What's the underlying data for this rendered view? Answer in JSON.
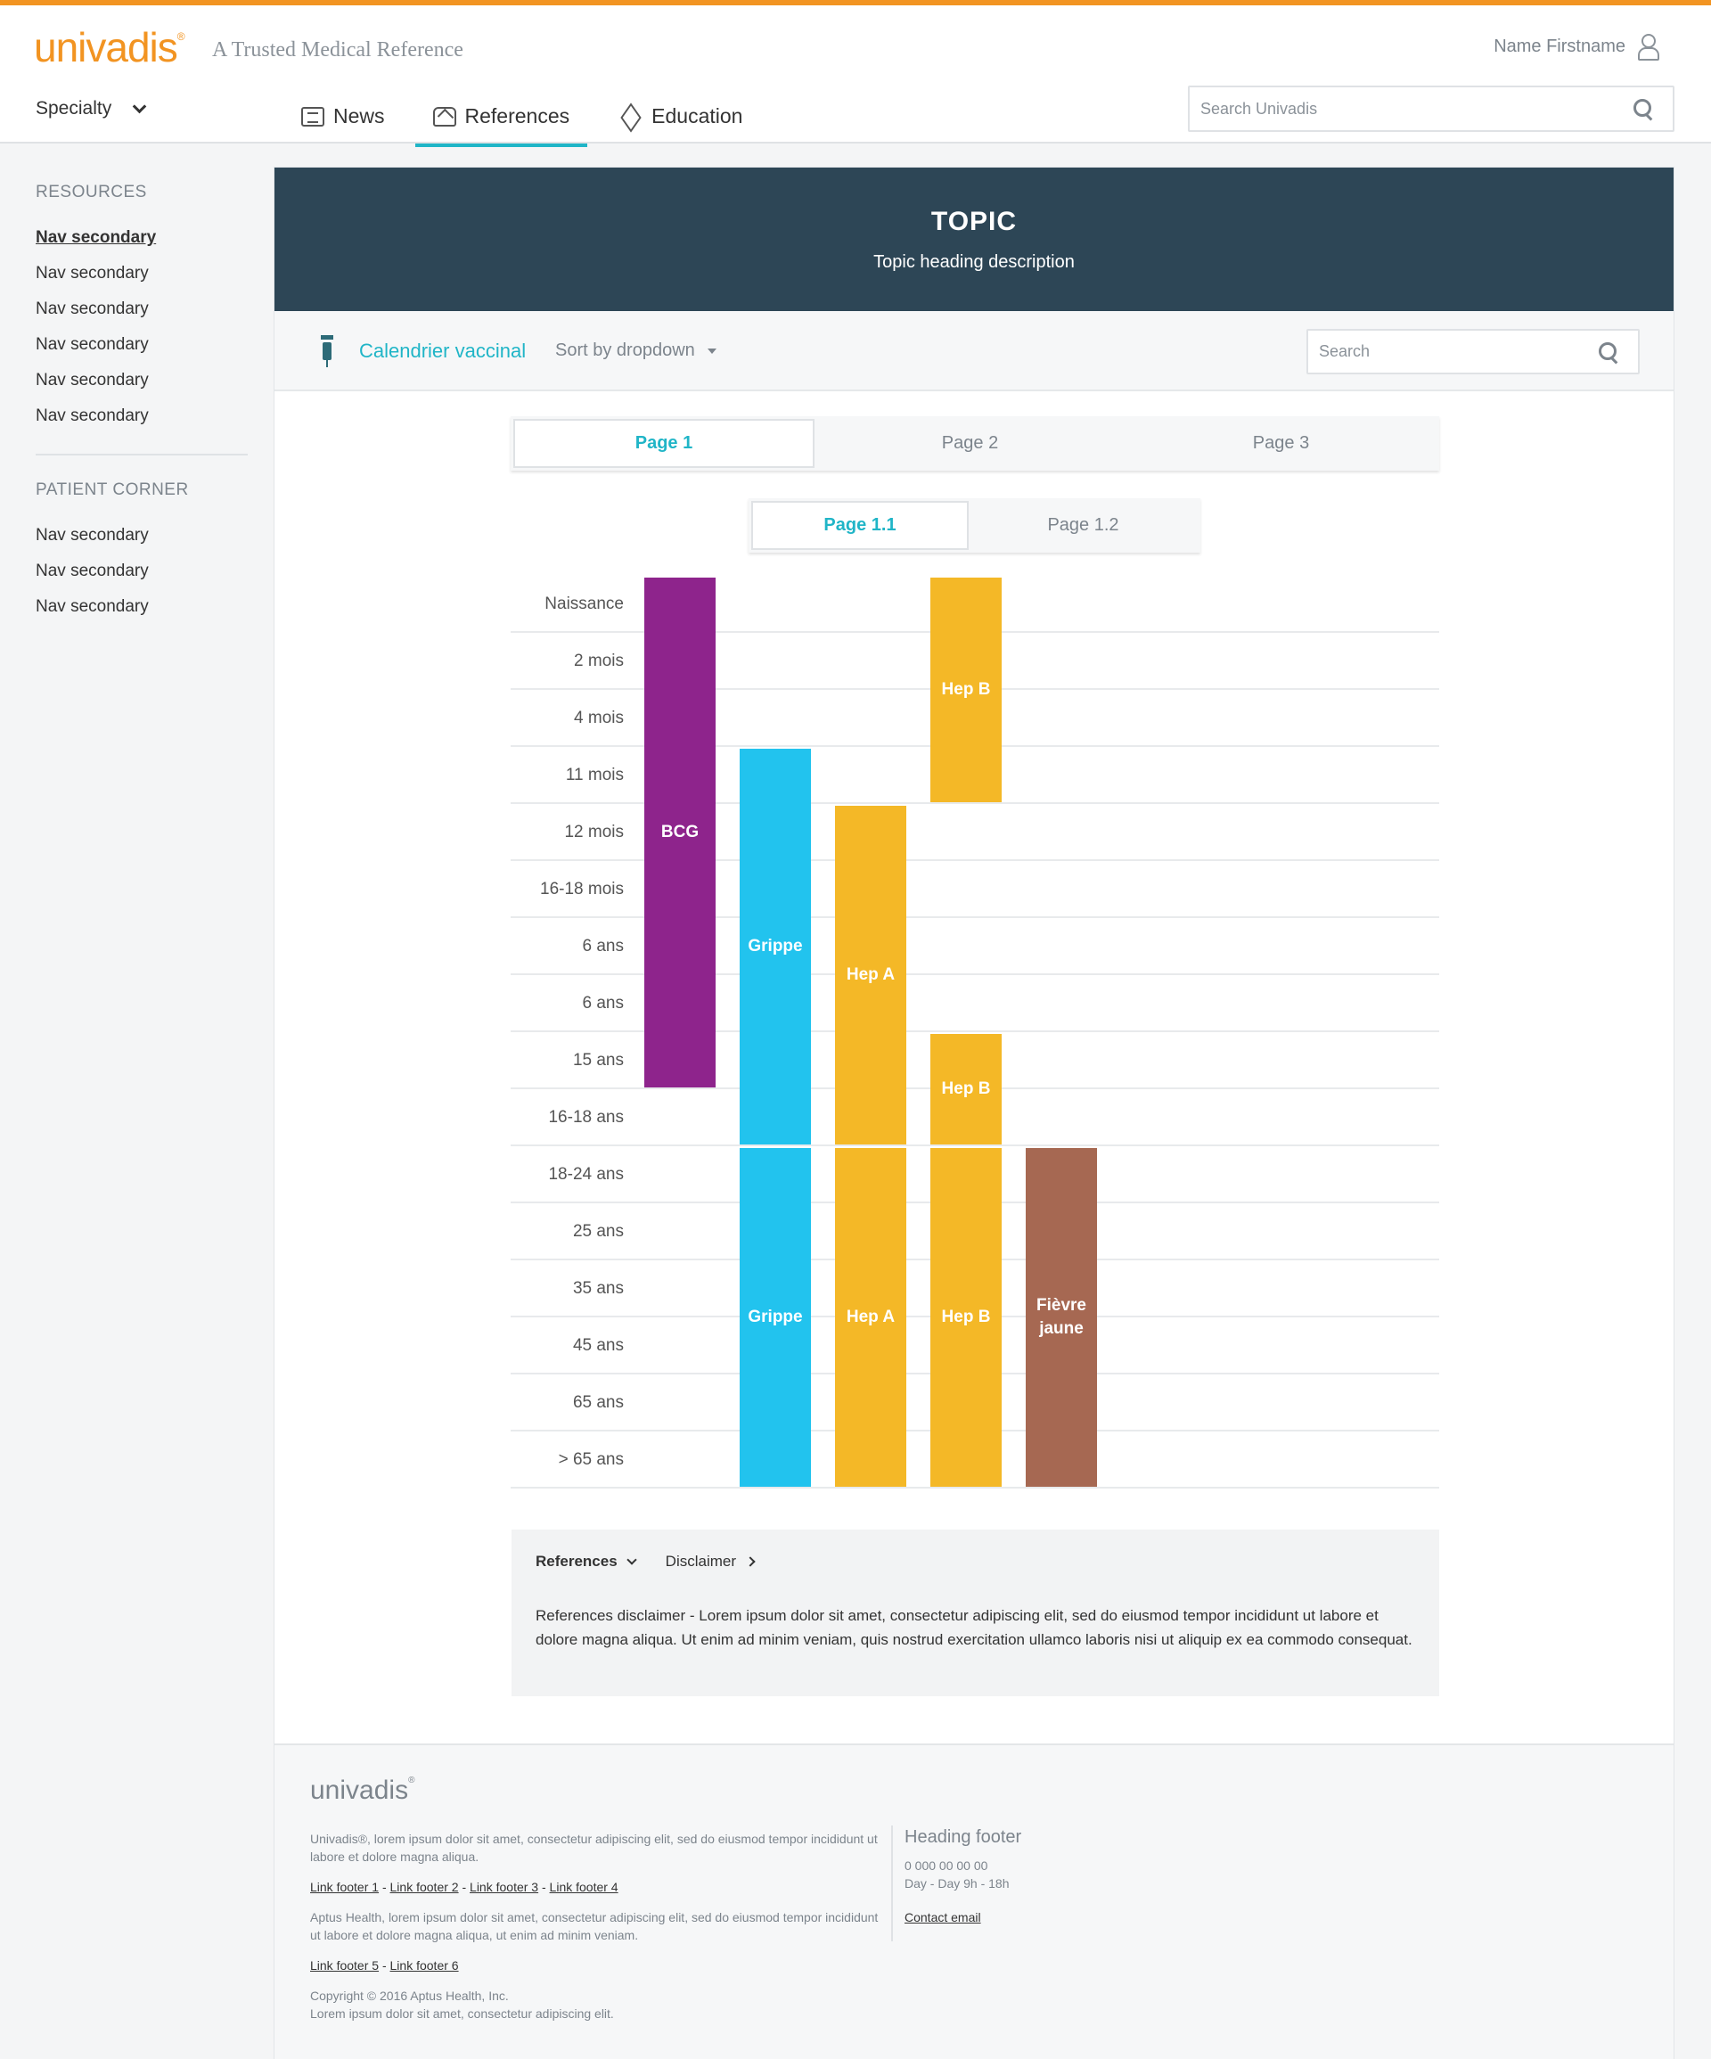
{
  "header": {
    "logo": "univadis",
    "logo_reg": "®",
    "tagline": "A Trusted Medical Reference",
    "user_name": "Name Firstname",
    "specialty_label": "Specialty",
    "nav": [
      {
        "label": "News",
        "icon": "news-icon"
      },
      {
        "label": "References",
        "icon": "references-icon",
        "active": true
      },
      {
        "label": "Education",
        "icon": "education-icon"
      }
    ],
    "search_placeholder": "Search Univadis",
    "accent_color": "#f29422",
    "active_color": "#20b5c7"
  },
  "sidebar": {
    "resources_heading": "RESOURCES",
    "resources": [
      "Nav secondary",
      "Nav secondary",
      "Nav secondary",
      "Nav secondary",
      "Nav secondary",
      "Nav secondary"
    ],
    "patient_heading": "PATIENT CORNER",
    "patient": [
      "Nav secondary",
      "Nav secondary",
      "Nav secondary"
    ]
  },
  "banner": {
    "title": "TOPIC",
    "description": "Topic heading description",
    "color": "#2d4656"
  },
  "toolbar": {
    "title": "Calendrier vaccinal",
    "sort_label": "Sort by dropdown",
    "search_placeholder": "Search"
  },
  "tabs": [
    "Page 1",
    "Page 2",
    "Page 3"
  ],
  "subtabs": [
    "Page 1.1",
    "Page 1.2"
  ],
  "chart_data": {
    "type": "table",
    "rows": [
      "Naissance",
      "2 mois",
      "4 mois",
      "11 mois",
      "12 mois",
      "16-18 mois",
      "6 ans",
      "6 ans",
      "15 ans",
      "16-18 ans",
      "18-24 ans",
      "25 ans",
      "35 ans",
      "45 ans",
      "65 ans",
      "> 65 ans"
    ],
    "columns": 5,
    "vaccines": [
      {
        "name": "BCG",
        "column": 0,
        "from_row": 0,
        "to_row": 8,
        "color": "#8e248c"
      },
      {
        "name": "Grippe",
        "column": 1,
        "from_row": 3,
        "to_row": 9,
        "color": "#22c3ee"
      },
      {
        "name": "Hep A",
        "column": 2,
        "from_row": 4,
        "to_row": 9,
        "color": "#f4b827"
      },
      {
        "name": "Hep B",
        "column": 3,
        "from_row": 0,
        "to_row": 3,
        "color": "#f4b827"
      },
      {
        "name": "Hep B",
        "column": 3,
        "from_row": 8,
        "to_row": 9,
        "color": "#f4b827"
      },
      {
        "name": "Grippe",
        "column": 1,
        "from_row": 10,
        "to_row": 15,
        "color": "#22c3ee"
      },
      {
        "name": "Hep A",
        "column": 2,
        "from_row": 10,
        "to_row": 15,
        "color": "#f4b827"
      },
      {
        "name": "Hep B",
        "column": 3,
        "from_row": 10,
        "to_row": 15,
        "color": "#f4b827"
      },
      {
        "name": "Fièvre jaune",
        "column": 4,
        "from_row": 10,
        "to_row": 15,
        "color": "#a66852"
      }
    ]
  },
  "references": {
    "tab_references": "References",
    "tab_disclaimer": "Disclaimer",
    "text": "References disclaimer - Lorem ipsum dolor sit amet, consectetur adipiscing elit, sed do eiusmod tempor incididunt ut labore et dolore magna aliqua. Ut enim ad minim veniam, quis nostrud exercitation ullamco laboris nisi ut aliquip ex ea commodo consequat."
  },
  "footer": {
    "logo": "univadis",
    "logo_reg": "®",
    "text1": "Univadis®, lorem ipsum dolor sit amet, consectetur adipiscing elit, sed do eiusmod tempor incididunt ut labore et dolore magna aliqua.",
    "links1": [
      "Link footer 1",
      "Link footer 2",
      "Link footer 3",
      "Link footer 4"
    ],
    "text2": "Aptus Health, lorem ipsum dolor sit amet, consectetur adipiscing elit, sed do eiusmod tempor incididunt ut labore et dolore magna aliqua, ut enim ad minim veniam.",
    "links2": [
      "Link footer 5",
      "Link footer 6"
    ],
    "copyright": "Copyright © 2016 Aptus Health, Inc.",
    "copyright2": "Lorem ipsum dolor sit amet, consectetur adipiscing elit.",
    "heading": "Heading footer",
    "phone": "0 000 00 00 00",
    "hours": "Day - Day  9h - 18h",
    "contact": "Contact email"
  }
}
